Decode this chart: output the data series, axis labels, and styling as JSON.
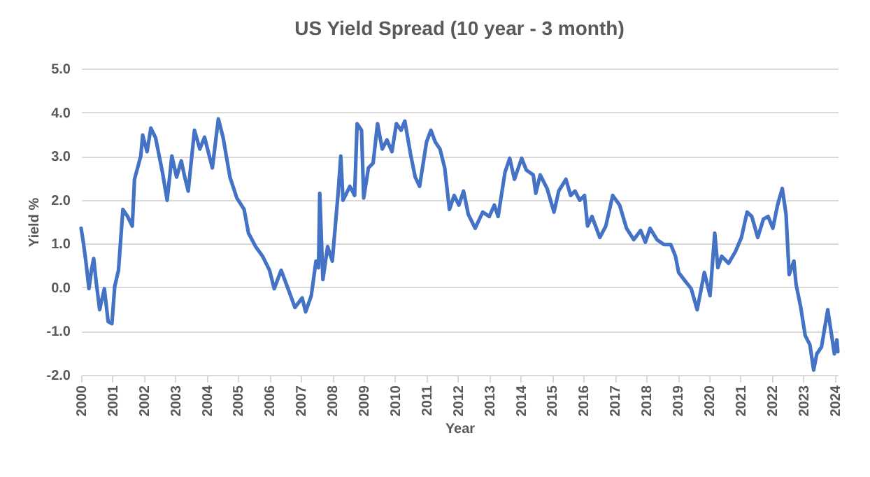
{
  "chart_data": {
    "type": "line",
    "title": "US Yield Spread (10 year - 3 month)",
    "xlabel": "Year",
    "ylabel": "Yield %",
    "x": [
      2000.0,
      2000.07,
      2000.15,
      2000.25,
      2000.33,
      2000.4,
      2000.47,
      2000.59,
      2000.74,
      2000.86,
      2000.98,
      2001.07,
      2001.19,
      2001.33,
      2001.48,
      2001.63,
      2001.7,
      2001.9,
      2001.96,
      2002.1,
      2002.22,
      2002.37,
      2002.59,
      2002.74,
      2002.89,
      2003.04,
      2003.19,
      2003.3,
      2003.41,
      2003.61,
      2003.78,
      2003.93,
      2004.18,
      2004.37,
      2004.52,
      2004.74,
      2004.96,
      2005.19,
      2005.33,
      2005.56,
      2005.78,
      2006.0,
      2006.15,
      2006.37,
      2006.59,
      2006.81,
      2007.04,
      2007.15,
      2007.33,
      2007.48,
      2007.56,
      2007.6,
      2007.7,
      2007.85,
      2008.0,
      2008.19,
      2008.27,
      2008.34,
      2008.56,
      2008.71,
      2008.79,
      2008.93,
      2009.0,
      2009.15,
      2009.3,
      2009.44,
      2009.59,
      2009.74,
      2009.9,
      2010.04,
      2010.19,
      2010.31,
      2010.49,
      2010.64,
      2010.78,
      2011.0,
      2011.14,
      2011.28,
      2011.43,
      2011.58,
      2011.73,
      2011.88,
      2012.03,
      2012.18,
      2012.33,
      2012.55,
      2012.79,
      2013.0,
      2013.16,
      2013.28,
      2013.5,
      2013.65,
      2013.8,
      2014.03,
      2014.18,
      2014.4,
      2014.48,
      2014.62,
      2014.84,
      2015.06,
      2015.21,
      2015.44,
      2015.59,
      2015.73,
      2015.88,
      2016.03,
      2016.13,
      2016.27,
      2016.52,
      2016.71,
      2016.93,
      2017.15,
      2017.37,
      2017.6,
      2017.82,
      2017.97,
      2018.12,
      2018.34,
      2018.56,
      2018.78,
      2018.93,
      2019.03,
      2019.2,
      2019.43,
      2019.62,
      2019.85,
      2020.03,
      2020.18,
      2020.28,
      2020.4,
      2020.62,
      2020.84,
      2021.03,
      2021.21,
      2021.36,
      2021.55,
      2021.73,
      2021.88,
      2022.03,
      2022.18,
      2022.33,
      2022.45,
      2022.55,
      2022.7,
      2022.77,
      2022.92,
      2023.06,
      2023.21,
      2023.33,
      2023.43,
      2023.58,
      2023.78,
      2023.88,
      2023.99,
      2024.07,
      2024.1
    ],
    "series": [
      {
        "color": "#4472c4",
        "values": [
          1.35,
          1.03,
          0.6,
          -0.03,
          0.4,
          0.66,
          0.18,
          -0.51,
          -0.03,
          -0.78,
          -0.83,
          0.02,
          0.39,
          1.78,
          1.62,
          1.4,
          2.47,
          3.0,
          3.48,
          3.1,
          3.64,
          3.42,
          2.63,
          1.99,
          3.0,
          2.52,
          2.89,
          2.52,
          2.2,
          3.59,
          3.16,
          3.43,
          2.73,
          3.85,
          3.43,
          2.52,
          2.04,
          1.78,
          1.24,
          0.93,
          0.71,
          0.39,
          -0.03,
          0.39,
          -0.03,
          -0.46,
          -0.24,
          -0.56,
          -0.19,
          0.6,
          0.45,
          2.15,
          0.18,
          0.93,
          0.6,
          2.2,
          3.0,
          1.99,
          2.31,
          2.1,
          3.74,
          3.59,
          2.04,
          2.73,
          2.84,
          3.74,
          3.16,
          3.37,
          3.1,
          3.74,
          3.59,
          3.8,
          3.05,
          2.52,
          2.31,
          3.32,
          3.59,
          3.32,
          3.16,
          2.73,
          1.78,
          2.1,
          1.88,
          2.2,
          1.67,
          1.35,
          1.72,
          1.62,
          1.88,
          1.62,
          2.63,
          2.95,
          2.47,
          2.95,
          2.68,
          2.57,
          2.15,
          2.57,
          2.26,
          1.72,
          2.2,
          2.47,
          2.1,
          2.2,
          1.99,
          2.1,
          1.4,
          1.62,
          1.14,
          1.4,
          2.1,
          1.88,
          1.35,
          1.09,
          1.3,
          1.03,
          1.35,
          1.09,
          0.98,
          0.98,
          0.71,
          0.34,
          0.18,
          -0.03,
          -0.51,
          0.34,
          -0.19,
          1.24,
          0.45,
          0.71,
          0.55,
          0.82,
          1.14,
          1.72,
          1.62,
          1.14,
          1.56,
          1.62,
          1.35,
          1.88,
          2.26,
          1.67,
          0.29,
          0.6,
          0.07,
          -0.46,
          -1.1,
          -1.31,
          -1.89,
          -1.52,
          -1.36,
          -0.51,
          -0.99,
          -1.52,
          -1.2,
          -1.47
        ]
      }
    ],
    "xlim": [
      2000,
      2024.1
    ],
    "xticks": [
      2000,
      2001,
      2002,
      2003,
      2004,
      2005,
      2006,
      2007,
      2008,
      2009,
      2010,
      2011,
      2012,
      2013,
      2014,
      2015,
      2016,
      2017,
      2018,
      2019,
      2020,
      2021,
      2022,
      2023,
      2024
    ],
    "ylim": [
      -2,
      5
    ],
    "yticks": [
      {
        "value": -2,
        "label": "-2.0"
      },
      {
        "value": -1,
        "label": "-1.0"
      },
      {
        "value": 0,
        "label": "0.0"
      },
      {
        "value": 1,
        "label": "1.0"
      },
      {
        "value": 2,
        "label": "2.0"
      },
      {
        "value": 3,
        "label": "3.0"
      },
      {
        "value": 4,
        "label": "4.0"
      },
      {
        "value": 5,
        "label": "5.0"
      }
    ],
    "grid": "y",
    "marker": "none",
    "line_style": "solid"
  }
}
